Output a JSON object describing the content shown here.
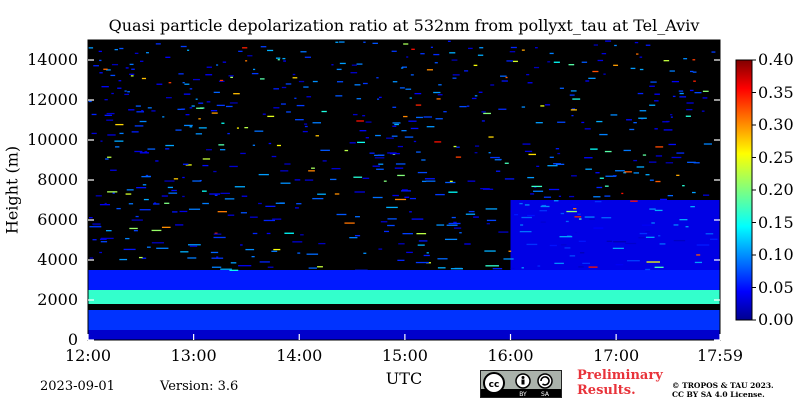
{
  "chart_data": {
    "type": "heatmap",
    "title": "Quasi particle depolarization ratio at 532nm from pollyxt_tau at Tel_Aviv",
    "xlabel": "UTC",
    "ylabel": "Height (m)",
    "x_ticks": [
      "12:00",
      "13:00",
      "14:00",
      "15:00",
      "16:00",
      "17:00",
      "17:59"
    ],
    "x_range": [
      "12:00",
      "17:59"
    ],
    "y_ticks": [
      0,
      2000,
      4000,
      6000,
      8000,
      10000,
      12000,
      14000
    ],
    "y_range": [
      0,
      15000
    ],
    "colorbar": {
      "ticks": [
        "0.00",
        "0.05",
        "0.10",
        "0.15",
        "0.20",
        "0.25",
        "0.30",
        "0.35",
        "0.40"
      ],
      "range": [
        0,
        0.4
      ],
      "colormap": "jet"
    },
    "layers": [
      {
        "height_range": [
          0,
          500
        ],
        "value": 0.03
      },
      {
        "height_range": [
          500,
          1500
        ],
        "value": 0.07
      },
      {
        "height_range": [
          1800,
          2500
        ],
        "value": 0.17
      },
      {
        "height_range": [
          2500,
          3500
        ],
        "value": 0.06
      },
      {
        "height_range": [
          3500,
          7000
        ],
        "value": 0.04,
        "x_range": [
          "16:00",
          "17:59"
        ]
      },
      {
        "height_range": [
          3500,
          15000
        ],
        "value": null,
        "note": "sparse noisy signal"
      }
    ],
    "background_color": "#000000"
  },
  "footer": {
    "date": "2023-09-01",
    "version": "Version: 3.6",
    "license_badge": [
      "cc",
      "BY",
      "SA"
    ],
    "preliminary": [
      "Preliminary",
      "Results."
    ],
    "copyright": [
      "© TROPOS & TAU 2023.",
      "CC BY SA 4.0 License."
    ]
  },
  "colors": {
    "preliminary": "#e8333a",
    "nodata": "#000000"
  }
}
